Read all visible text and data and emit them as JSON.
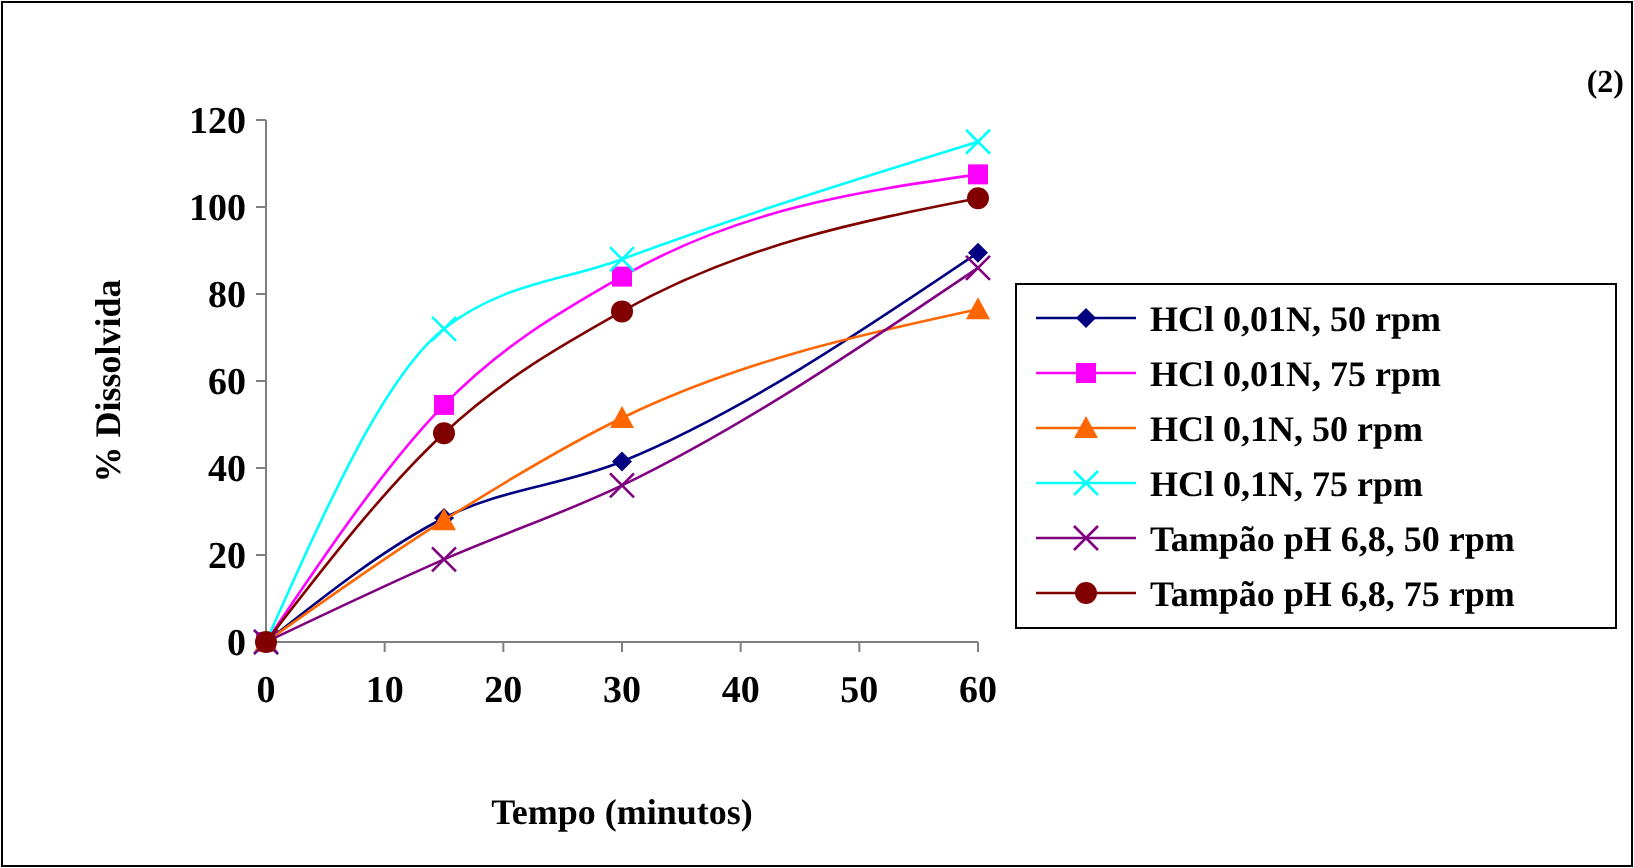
{
  "chart_data": {
    "type": "line",
    "xlabel": "Tempo (minutos)",
    "ylabel": "% Dissolvida",
    "annotations": [
      "(2)"
    ],
    "x": [
      0,
      15,
      30,
      60
    ],
    "xlim": [
      0,
      60
    ],
    "xticks": [
      0,
      10,
      20,
      30,
      40,
      50,
      60
    ],
    "ylim": [
      0,
      120
    ],
    "yticks": [
      0,
      20,
      40,
      60,
      80,
      100,
      120
    ],
    "grid": false,
    "legend": "right",
    "series": [
      {
        "name": "HCl 0,01N, 50 rpm",
        "color": "#000080",
        "marker": "diamond",
        "values": [
          0,
          28.5,
          41.5,
          89.5
        ]
      },
      {
        "name": "HCl 0,01N, 75 rpm",
        "color": "#ff00ff",
        "marker": "square",
        "values": [
          0,
          54.5,
          84,
          107.5
        ]
      },
      {
        "name": "HCl 0,1N, 50 rpm",
        "color": "#ff6600",
        "marker": "triangle",
        "values": [
          0,
          28,
          51.5,
          76.5
        ]
      },
      {
        "name": "HCl 0,1N, 75 rpm",
        "color": "#00ffff",
        "marker": "cross",
        "values": [
          0,
          72,
          88,
          115
        ]
      },
      {
        "name": "Tampão pH 6,8, 50 rpm",
        "color": "#800080",
        "marker": "cross",
        "values": [
          0,
          19,
          36,
          86
        ]
      },
      {
        "name": "Tampão pH 6,8, 75 rpm",
        "color": "#800000",
        "marker": "circle",
        "values": [
          0,
          48,
          76,
          102
        ]
      }
    ]
  }
}
